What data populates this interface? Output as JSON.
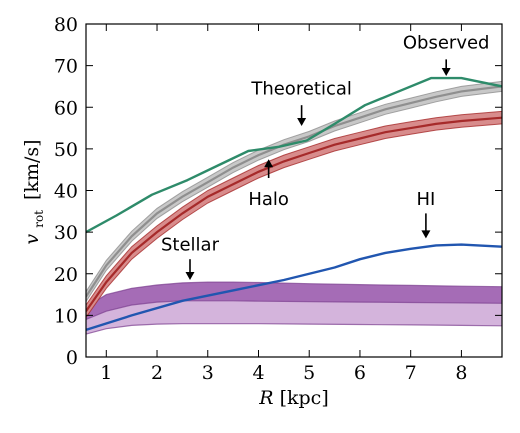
{
  "chart_data": {
    "type": "line",
    "xlabel": "R [kpc]",
    "xlabel_italic": "R",
    "xlabel_unit": "[kpc]",
    "ylabel": "v_rot [km/s]",
    "ylabel_main": "v",
    "ylabel_sub": "rot",
    "ylabel_unit": "[km/s]",
    "xlim": [
      0.6,
      8.8
    ],
    "ylim": [
      0,
      80
    ],
    "xticks": [
      1,
      2,
      3,
      4,
      5,
      6,
      7,
      8
    ],
    "yticks": [
      0,
      10,
      20,
      30,
      40,
      50,
      60,
      70,
      80
    ],
    "grid": false,
    "legend": "none",
    "series": [
      {
        "name": "Observed",
        "color": "#2e8b6a",
        "x": [
          0.6,
          1.2,
          1.9,
          2.6,
          3.2,
          3.8,
          4.4,
          4.95,
          5.5,
          6.1,
          6.7,
          7.4,
          8.0,
          8.8
        ],
        "y": [
          30,
          34,
          39,
          42.5,
          46,
          49.5,
          50.5,
          52,
          56,
          60.5,
          63.5,
          67,
          67,
          65
        ]
      },
      {
        "name": "Theoretical",
        "color": "#8f8f8f",
        "band_color": "#c8c8c8",
        "x": [
          0.6,
          1.0,
          1.5,
          2.0,
          2.5,
          3.0,
          3.5,
          4.0,
          4.5,
          5.0,
          5.5,
          6.0,
          6.5,
          7.0,
          7.5,
          8.0,
          8.8
        ],
        "y": [
          14.5,
          22,
          29,
          34.5,
          38.5,
          42,
          45.5,
          48.5,
          51,
          53,
          55.5,
          57.5,
          59.5,
          61,
          62.5,
          63.8,
          65
        ],
        "half_width": 1.2
      },
      {
        "name": "Halo",
        "color": "#a62a2a",
        "band_color": "#d88c8c",
        "x": [
          0.6,
          1.0,
          1.5,
          2.0,
          2.5,
          3.0,
          3.5,
          4.0,
          4.5,
          5.0,
          5.5,
          6.0,
          6.5,
          7.0,
          7.5,
          8.0,
          8.8
        ],
        "y": [
          11,
          18,
          25,
          30,
          34.5,
          38.5,
          41.5,
          44.5,
          47,
          49,
          51,
          52.5,
          54,
          55,
          56,
          56.7,
          57.5
        ],
        "half_width": 1.5
      },
      {
        "name": "HI",
        "color": "#2156b0",
        "x": [
          0.6,
          1.5,
          2.5,
          3.5,
          4.5,
          5.5,
          6.0,
          6.5,
          7.0,
          7.5,
          8.0,
          8.8
        ],
        "y": [
          6.5,
          10,
          13.5,
          16,
          18.5,
          21.5,
          23.5,
          25,
          26,
          26.8,
          27,
          26.5
        ]
      },
      {
        "name": "Stellar",
        "color": "#7a3d8f",
        "x": [
          0.6,
          1.0,
          1.5,
          2.0,
          2.5,
          3.0,
          3.5,
          4.0,
          5.0,
          6.0,
          7.0,
          8.0,
          8.8
        ],
        "y": [
          9,
          11,
          12.5,
          13.2,
          13.5,
          13.5,
          13.5,
          13.4,
          13.3,
          13.2,
          13.1,
          13.0,
          12.9
        ],
        "upper": [
          12,
          15,
          16.5,
          17.3,
          17.8,
          18,
          18,
          17.9,
          17.6,
          17.4,
          17.2,
          17.0,
          16.9
        ],
        "lower": [
          5.5,
          6.8,
          7.6,
          7.9,
          8.0,
          8.0,
          8.0,
          8.0,
          7.9,
          7.8,
          7.7,
          7.6,
          7.5
        ],
        "upper_band_color": "#a56cb6",
        "lower_band_color": "#d4b4dc"
      }
    ],
    "annotations": [
      {
        "text": "Observed",
        "arrow_from": [
          7.7,
          71.5
        ],
        "arrow_to": [
          7.7,
          67.5
        ],
        "text_at": [
          7.7,
          75.5
        ]
      },
      {
        "text": "Theoretical",
        "arrow_from": [
          4.85,
          60.5
        ],
        "arrow_to": [
          4.85,
          55.5
        ],
        "text_at": [
          4.85,
          64.5
        ]
      },
      {
        "text": "Halo",
        "arrow_from": [
          4.2,
          43
        ],
        "arrow_to": [
          4.2,
          47.5
        ],
        "text_at": [
          4.2,
          38
        ]
      },
      {
        "text": "HI",
        "arrow_from": [
          7.3,
          34.5
        ],
        "arrow_to": [
          7.3,
          28.5
        ],
        "text_at": [
          7.3,
          38
        ]
      },
      {
        "text": "Stellar",
        "arrow_from": [
          2.65,
          23.5
        ],
        "arrow_to": [
          2.65,
          18.5
        ],
        "text_at": [
          2.65,
          27
        ]
      }
    ]
  }
}
